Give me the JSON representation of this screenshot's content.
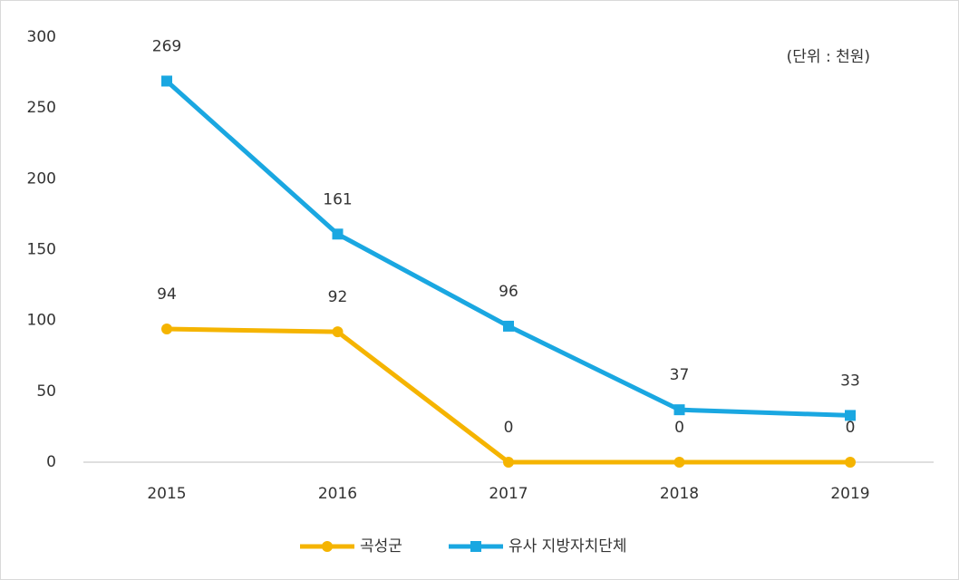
{
  "chart_data": {
    "type": "line",
    "annotation": "(단위 : 천원)",
    "categories": [
      "2015",
      "2016",
      "2017",
      "2018",
      "2019"
    ],
    "series": [
      {
        "name": "곡성군",
        "color": "#f5b400",
        "marker": "circle",
        "values": [
          94,
          92,
          0,
          0,
          0
        ]
      },
      {
        "name": "유사 지방자치단체",
        "color": "#1aa7e1",
        "marker": "square",
        "values": [
          269,
          161,
          96,
          37,
          33
        ]
      }
    ],
    "ylim": [
      0,
      300
    ],
    "yticks": [
      0,
      50,
      100,
      150,
      200,
      250,
      300
    ],
    "grid": false,
    "legend": "bottom"
  }
}
